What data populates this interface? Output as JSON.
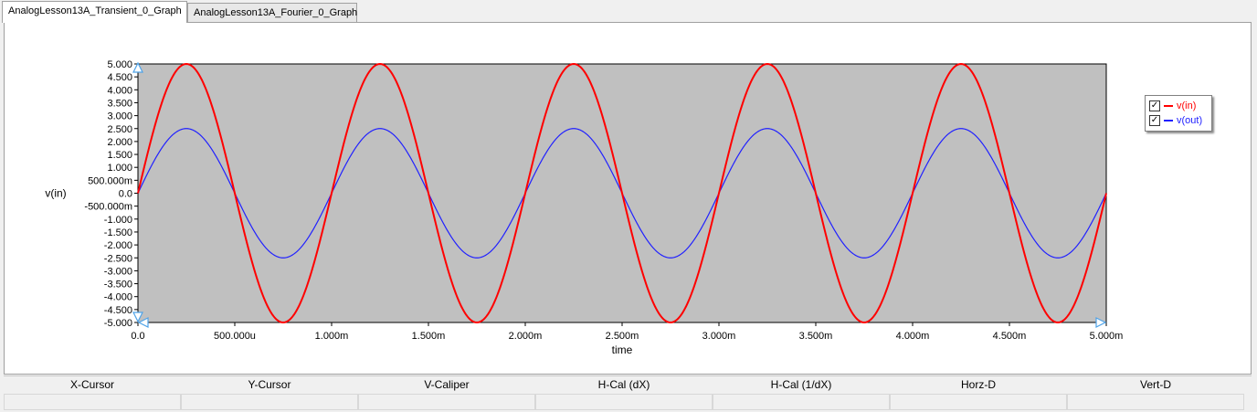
{
  "tabs": [
    {
      "label": "AnalogLesson13A_Transient_0_Graph",
      "active": true
    },
    {
      "label": "AnalogLesson13A_Fourier_0_Graph",
      "active": false
    }
  ],
  "chart_data": {
    "type": "line",
    "xlabel": "time",
    "ylabel": "v(in)",
    "xlim": [
      0,
      0.005
    ],
    "ylim": [
      -5,
      5
    ],
    "x_tick_values": [
      0,
      0.0005,
      0.001,
      0.0015,
      0.002,
      0.0025,
      0.003,
      0.0035,
      0.004,
      0.0045,
      0.005
    ],
    "x_tick_labels": [
      "0.0",
      "500.000u",
      "1.000m",
      "1.500m",
      "2.000m",
      "2.500m",
      "3.000m",
      "3.500m",
      "4.000m",
      "4.500m",
      "5.000m"
    ],
    "y_tick_values": [
      5,
      4.5,
      4,
      3.5,
      3,
      2.5,
      2,
      1.5,
      1,
      0.5,
      0,
      -0.5,
      -1,
      -1.5,
      -2,
      -2.5,
      -3,
      -3.5,
      -4,
      -4.5,
      -5
    ],
    "y_tick_labels": [
      "5.000",
      "4.500",
      "4.000",
      "3.500",
      "3.000",
      "2.500",
      "2.000",
      "1.500",
      "1.000",
      "500.000m",
      "0.0",
      "-500.000m",
      "-1.000",
      "-1.500",
      "-2.000",
      "-2.500",
      "-3.000",
      "-3.500",
      "-4.000",
      "-4.500",
      "-5.000"
    ],
    "grid": false,
    "legend_position": "top-right",
    "plot_background": "#c0c0c0",
    "series": [
      {
        "name": "v(in)",
        "color": "#ff0000",
        "function": "sine",
        "amplitude": 5,
        "frequency_hz": 1000,
        "checked": true
      },
      {
        "name": "v(out)",
        "color": "#2020ff",
        "function": "sine",
        "amplitude": 2.5,
        "frequency_hz": 1000,
        "checked": true
      }
    ]
  },
  "bottom_bar": {
    "headers": [
      "X-Cursor",
      "Y-Cursor",
      "V-Caliper",
      "H-Cal (dX)",
      "H-Cal (1/dX)",
      "Horz-D",
      "Vert-D"
    ],
    "values": [
      "",
      "",
      "",
      "",
      "",
      "",
      ""
    ]
  }
}
